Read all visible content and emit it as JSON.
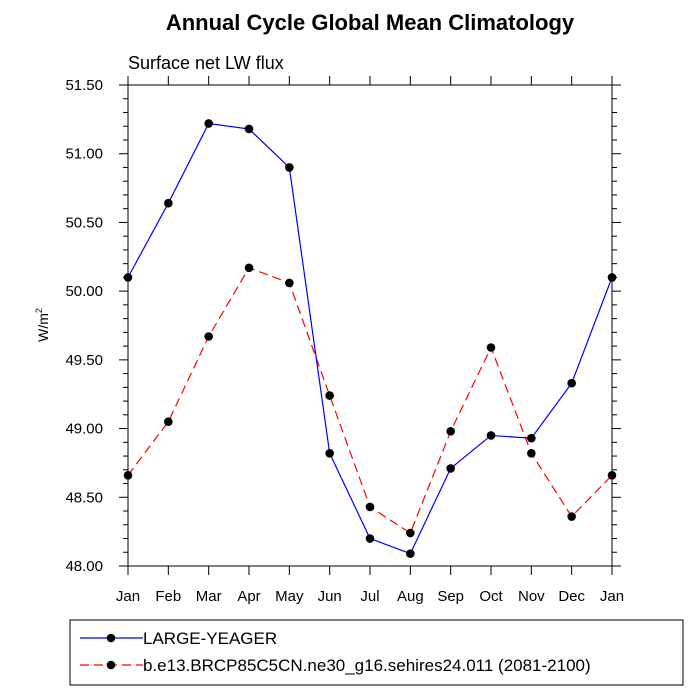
{
  "chart_data": {
    "type": "line",
    "title": "Annual Cycle Global Mean Climatology",
    "subtitle": "Surface net LW flux",
    "ylabel_base": "W/m",
    "ylabel_sup": "2",
    "ylim": [
      48.0,
      51.5
    ],
    "yticks": [
      "48.00",
      "48.50",
      "49.00",
      "49.50",
      "50.00",
      "50.50",
      "51.00",
      "51.50"
    ],
    "categories": [
      "Jan",
      "Feb",
      "Mar",
      "Apr",
      "May",
      "Jun",
      "Jul",
      "Aug",
      "Sep",
      "Oct",
      "Nov",
      "Dec",
      "Jan"
    ],
    "series": [
      {
        "name": "LARGE-YEAGER",
        "color": "#0000ff",
        "dashed": false,
        "values": [
          50.1,
          50.64,
          51.22,
          51.18,
          50.9,
          48.82,
          48.2,
          48.09,
          48.71,
          48.95,
          48.93,
          49.33,
          50.1
        ]
      },
      {
        "name": "b.e13.BRCP85C5CN.ne30_g16.sehires24.011 (2081-2100)",
        "color": "#ff0000",
        "dashed": true,
        "values": [
          48.66,
          49.05,
          49.67,
          50.17,
          50.06,
          49.24,
          48.43,
          48.24,
          48.98,
          49.59,
          48.82,
          48.36,
          48.66
        ]
      }
    ]
  }
}
